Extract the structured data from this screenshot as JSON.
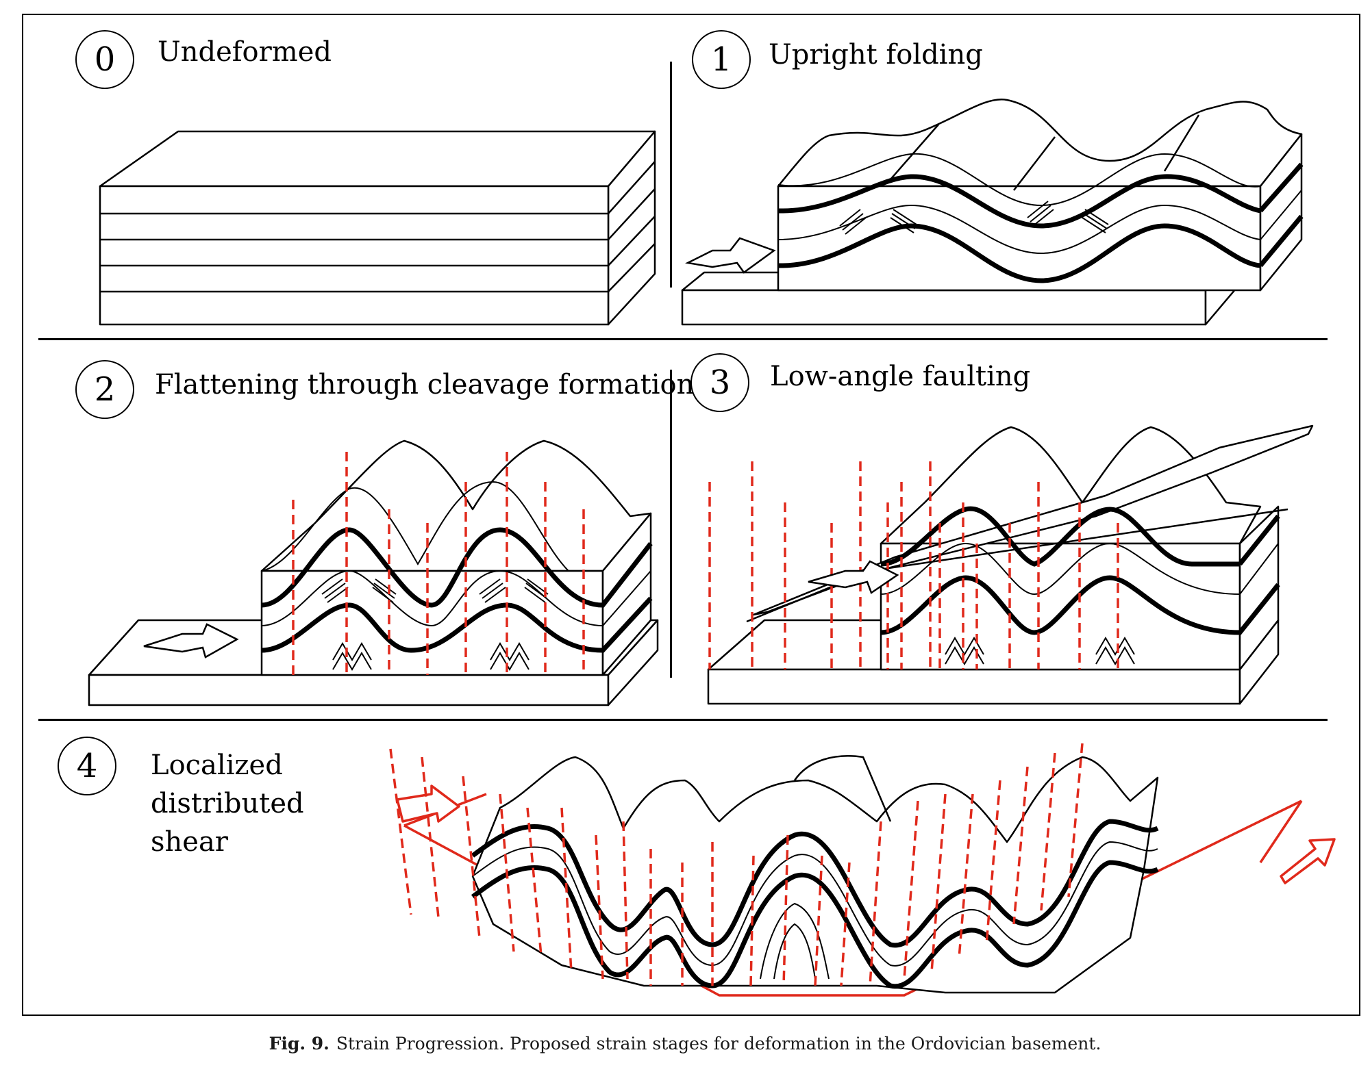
{
  "stages": [
    {
      "number": "0",
      "title": "Undeformed"
    },
    {
      "number": "1",
      "title": "Upright folding"
    },
    {
      "number": "2",
      "title": "Flattening through cleavage formation"
    },
    {
      "number": "3",
      "title": "Low-angle faulting"
    },
    {
      "number": "4",
      "title": "Localized distributed shear"
    }
  ],
  "caption": {
    "label": "Fig. 9.",
    "text": "Strain Progression. Proposed strain stages for deformation in the Ordovician basement."
  },
  "colors": {
    "line": "#000000",
    "cleavage": "#e0291b",
    "background": "#ffffff"
  }
}
